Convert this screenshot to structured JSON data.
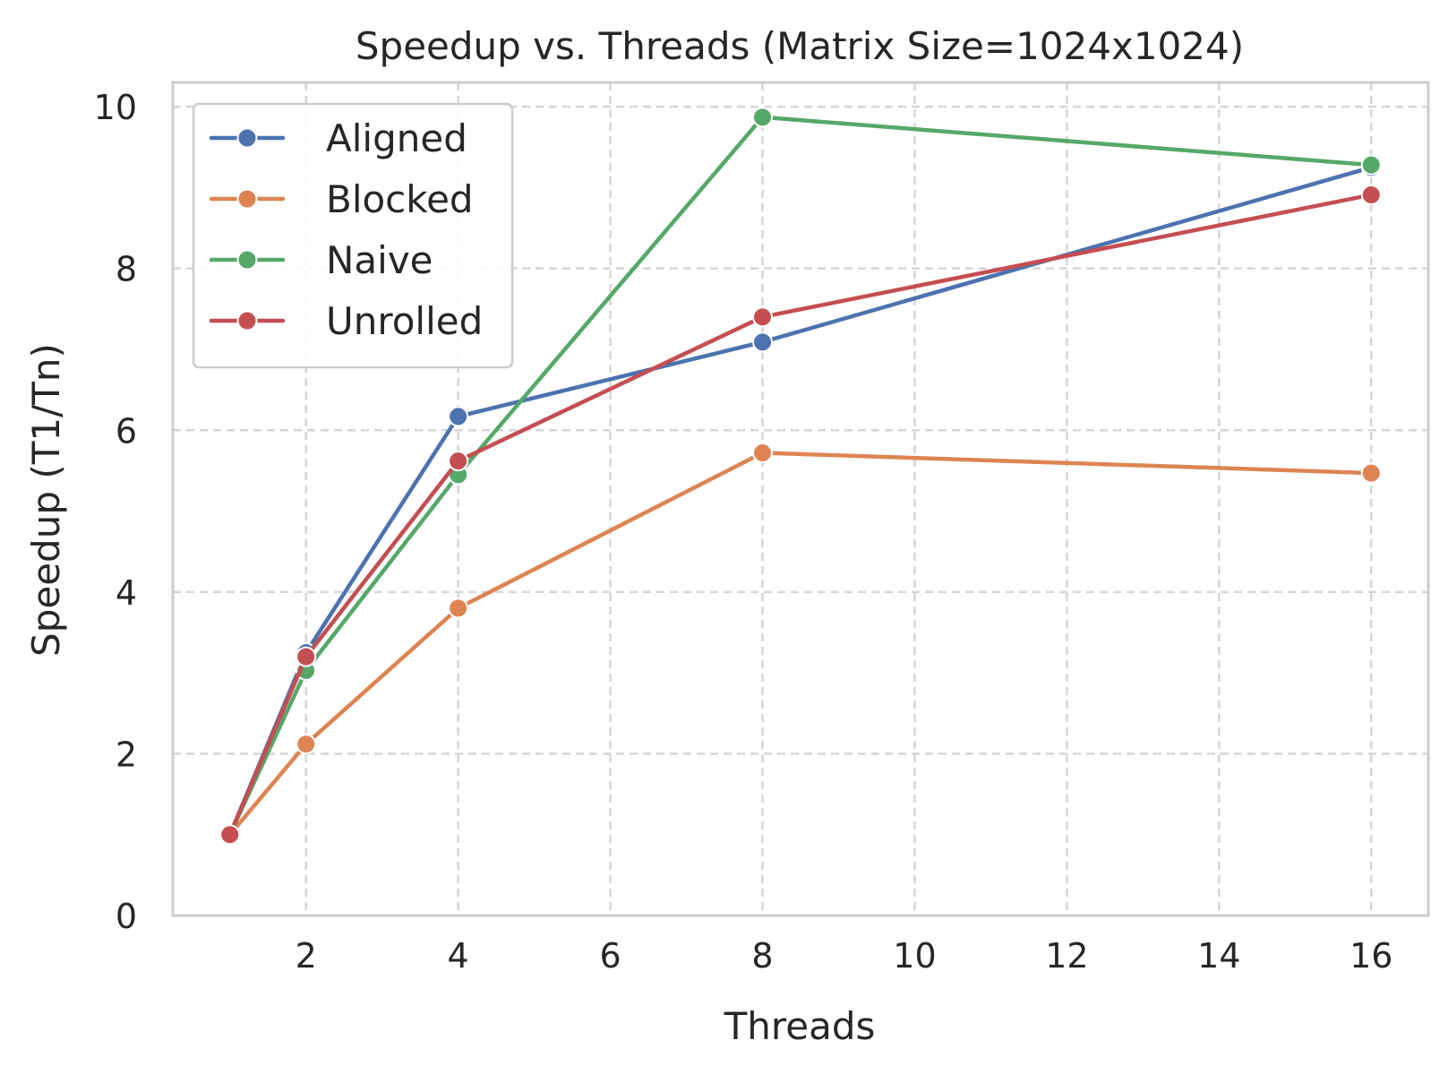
{
  "chart_data": {
    "type": "line",
    "title": "Speedup vs. Threads (Matrix Size=1024x1024)",
    "xlabel": "Threads",
    "ylabel": "Speedup (T1/Tn)",
    "xlim": [
      0.25,
      16.75
    ],
    "ylim": [
      0,
      10.3
    ],
    "xticks": [
      2,
      4,
      6,
      8,
      10,
      12,
      14,
      16
    ],
    "yticks": [
      0,
      2,
      4,
      6,
      8,
      10
    ],
    "grid": true,
    "grid_style": "dashed",
    "legend_position": "top-left",
    "x": [
      1,
      2,
      4,
      8,
      16
    ],
    "series": [
      {
        "name": "Aligned",
        "color": "#4c72b0",
        "values": [
          1.0,
          3.25,
          6.17,
          7.09,
          9.25
        ]
      },
      {
        "name": "Blocked",
        "color": "#dd8452",
        "values": [
          1.0,
          2.12,
          3.8,
          5.72,
          5.47
        ]
      },
      {
        "name": "Naive",
        "color": "#55a868",
        "values": [
          1.0,
          3.03,
          5.45,
          9.87,
          9.28
        ]
      },
      {
        "name": "Unrolled",
        "color": "#c44e52",
        "values": [
          1.0,
          3.2,
          5.62,
          7.4,
          8.91
        ]
      }
    ]
  }
}
